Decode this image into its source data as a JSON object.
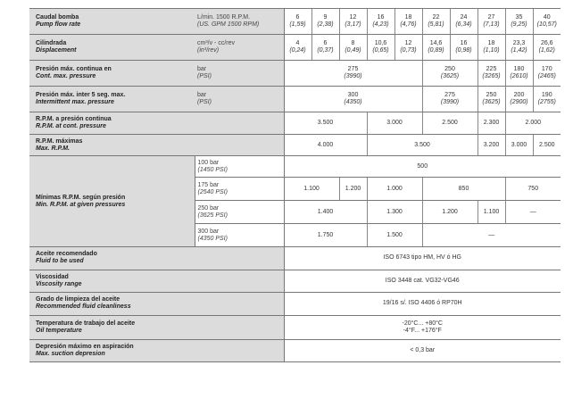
{
  "rows": [
    {
      "es": "Caudal bomba",
      "en": "Pump flow rate",
      "unit": "L/min. 1500 R.P.M.",
      "unit2": "(US. GPM 1500 RPM)",
      "h": 29,
      "cells": [
        [
          "6",
          "(1,59)",
          1
        ],
        [
          "9",
          "(2,38)",
          1
        ],
        [
          "12",
          "(3,17)",
          1
        ],
        [
          "16",
          "(4,23)",
          1
        ],
        [
          "18",
          "(4,76)",
          1
        ],
        [
          "22",
          "(5,81)",
          1
        ],
        [
          "24",
          "(6,34)",
          1
        ],
        [
          "27",
          "(7,13)",
          1
        ],
        [
          "35",
          "(9,25)",
          1
        ],
        [
          "40",
          "(10,57)",
          1
        ]
      ]
    },
    {
      "es": "Cilindrada",
      "en": "Displacement",
      "unit": "cm³/v - cc/rev",
      "unit2": "(in³/rev)",
      "h": 29,
      "cells": [
        [
          "4",
          "(0,24)",
          1
        ],
        [
          "6",
          "(0,37)",
          1
        ],
        [
          "8",
          "(0,49)",
          1
        ],
        [
          "10,6",
          "(0,65)",
          1
        ],
        [
          "12",
          "(0,73)",
          1
        ],
        [
          "14,6",
          "(0,89)",
          1
        ],
        [
          "16",
          "(0,98)",
          1
        ],
        [
          "18",
          "(1,10)",
          1
        ],
        [
          "23,3",
          "(1,42)",
          1
        ],
        [
          "26,6",
          "(1,62)",
          1
        ]
      ]
    },
    {
      "es": "Presión máx. continua en",
      "en": "Cont. max. pressure",
      "unit": "bar",
      "unit2": "(PSI)",
      "h": 29,
      "cells": [
        [
          "275",
          "(3990)",
          5
        ],
        [
          "250",
          "(3625)",
          2
        ],
        [
          "225",
          "(3265)",
          1
        ],
        [
          "180",
          "(2610)",
          1
        ],
        [
          "170",
          "(2465)",
          1
        ]
      ]
    },
    {
      "es": "Presión máx. inter 5 seg. max.",
      "en": "Intermittent max. pressure",
      "unit": "bar",
      "unit2": "(PSI)",
      "h": 29,
      "cells": [
        [
          "300",
          "(4350)",
          5
        ],
        [
          "275",
          "(3990)",
          2
        ],
        [
          "250",
          "(3625)",
          1
        ],
        [
          "200",
          "(2900)",
          1
        ],
        [
          "190",
          "(2755)",
          1
        ]
      ]
    },
    {
      "es": "R.P.M. a presión continua",
      "en": "R.P.M. at cont. pressure",
      "unit": "",
      "unit2": "",
      "h": 25,
      "cells": [
        [
          "3.500",
          "",
          3
        ],
        [
          "3.000",
          "",
          2
        ],
        [
          "2.500",
          "",
          2
        ],
        [
          "2.300",
          "",
          1
        ],
        [
          "2.000",
          "",
          2
        ]
      ]
    },
    {
      "es": "R.P.M. máximas",
      "en": "Max. R.P.M.",
      "unit": "",
      "unit2": "",
      "h": 24,
      "cells": [
        [
          "4.000",
          "",
          3
        ],
        [
          "3.500",
          "",
          4
        ],
        [
          "3.200",
          "",
          1
        ],
        [
          "3.000",
          "",
          1
        ],
        [
          "2.500",
          "",
          1
        ]
      ]
    }
  ],
  "min_rpm": {
    "es": "Mínimas R.P.M. según presión",
    "en": "Min. R.P.M. at given pressures",
    "subs": [
      {
        "unit": "100 bar",
        "unit2": "(1450 PSI)",
        "cells": [
          [
            "500",
            "",
            10
          ]
        ]
      },
      {
        "unit": "175 bar",
        "unit2": "(2540 PSI)",
        "cells": [
          [
            "1.100",
            "",
            2
          ],
          [
            "1.200",
            "",
            1
          ],
          [
            "1.000",
            "",
            2
          ],
          [
            "850",
            "",
            3
          ],
          [
            "750",
            "",
            2
          ]
        ]
      },
      {
        "unit": "250 bar",
        "unit2": "(3625 PSI)",
        "cells": [
          [
            "1.400",
            "",
            3
          ],
          [
            "1.300",
            "",
            2
          ],
          [
            "1.200",
            "",
            2
          ],
          [
            "1.100",
            "",
            1
          ],
          [
            "—",
            "",
            2
          ]
        ]
      },
      {
        "unit": "300 bar",
        "unit2": "(4350 PSI)",
        "cells": [
          [
            "1.750",
            "",
            3
          ],
          [
            "1.500",
            "",
            2
          ],
          [
            "—",
            "",
            5
          ]
        ]
      }
    ]
  },
  "rows2": [
    {
      "es": "Aceite recomendado",
      "en": "Fluid to be used",
      "v": "ISO 6743 tipo HM, HV ó HG",
      "v2": ""
    },
    {
      "es": "Viscosidad",
      "en": "Viscosity range",
      "v": "ISO 3448 cat. VG32-VG46",
      "v2": ""
    },
    {
      "es": "Grado de limpieza del aceite",
      "en": "Recommended fluid cleanliness",
      "v": "19/16 s/. ISO 4406 ó RP70H",
      "v2": ""
    },
    {
      "es": "Temperatura de trabajo del aceite",
      "en": "Oil temperature",
      "v": "-20°C... +80°C",
      "v2": "-4°F... +176°F"
    },
    {
      "es": "Depresión máximo en aspiración",
      "en": "Max. suction depresion",
      "v": "< 0,3 bar",
      "v2": ""
    }
  ]
}
